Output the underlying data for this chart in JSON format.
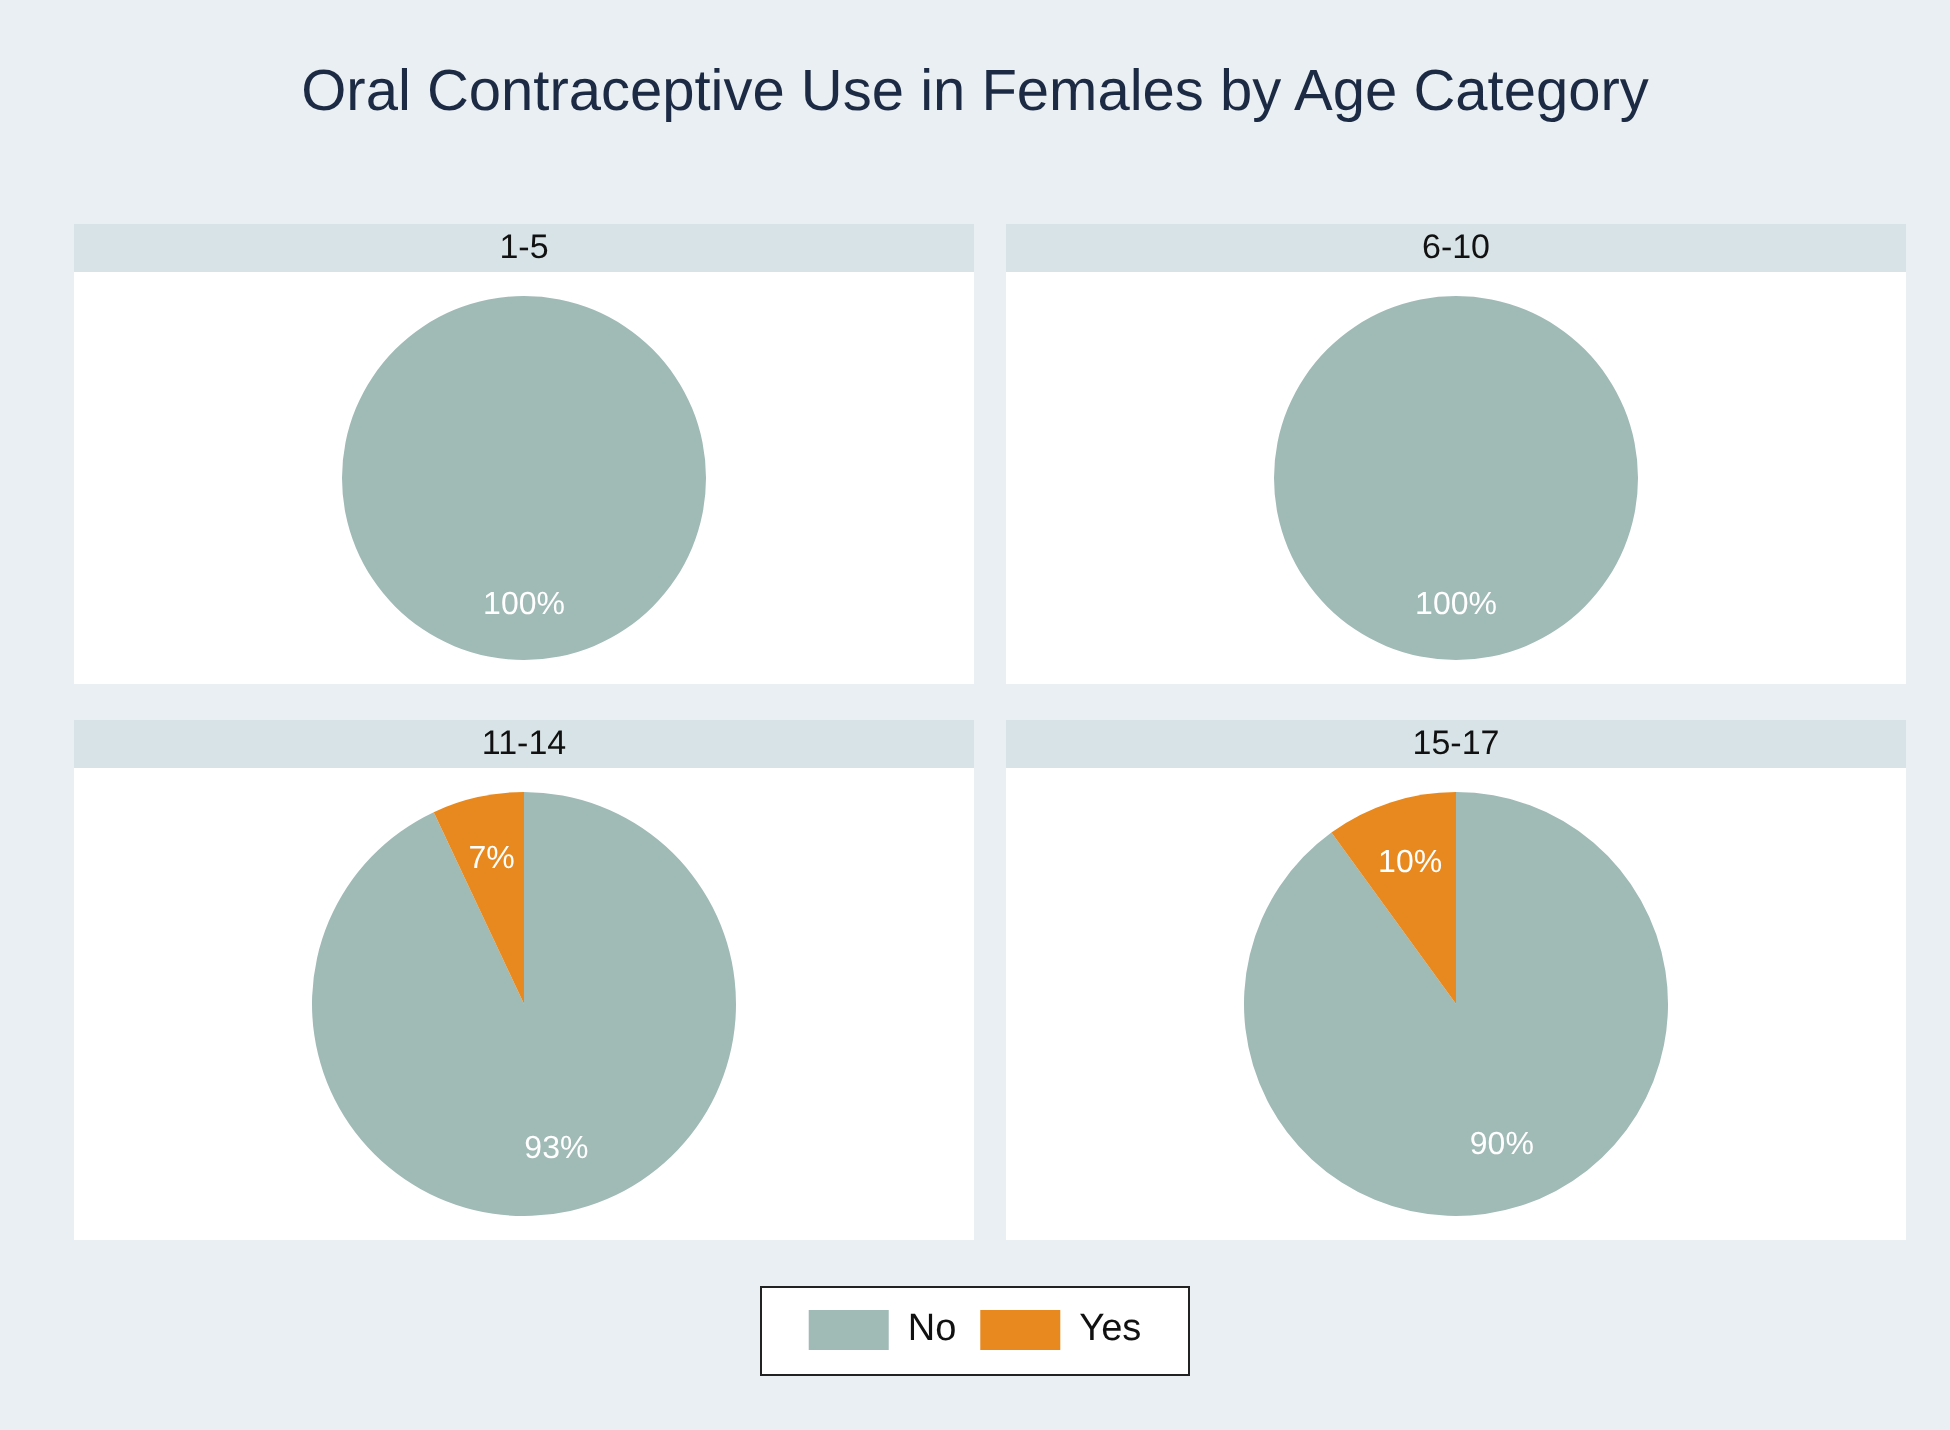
{
  "chart_data": {
    "type": "pie",
    "title": "Oral Contraceptive Use in Females by Age Category",
    "categories": [
      "No",
      "Yes"
    ],
    "colors": [
      "#a0bab5",
      "#e8891f"
    ],
    "legend": "bottom",
    "series": [
      {
        "name": "1-5",
        "values": [
          100,
          0
        ],
        "value_labels": [
          "100%",
          null
        ]
      },
      {
        "name": "6-10",
        "values": [
          100,
          0
        ],
        "value_labels": [
          "100%",
          null
        ]
      },
      {
        "name": "11-14",
        "values": [
          93,
          7
        ],
        "value_labels": [
          "93%",
          "7%"
        ]
      },
      {
        "name": "15-17",
        "values": [
          90,
          10
        ],
        "value_labels": [
          "90%",
          "10%"
        ]
      }
    ]
  }
}
